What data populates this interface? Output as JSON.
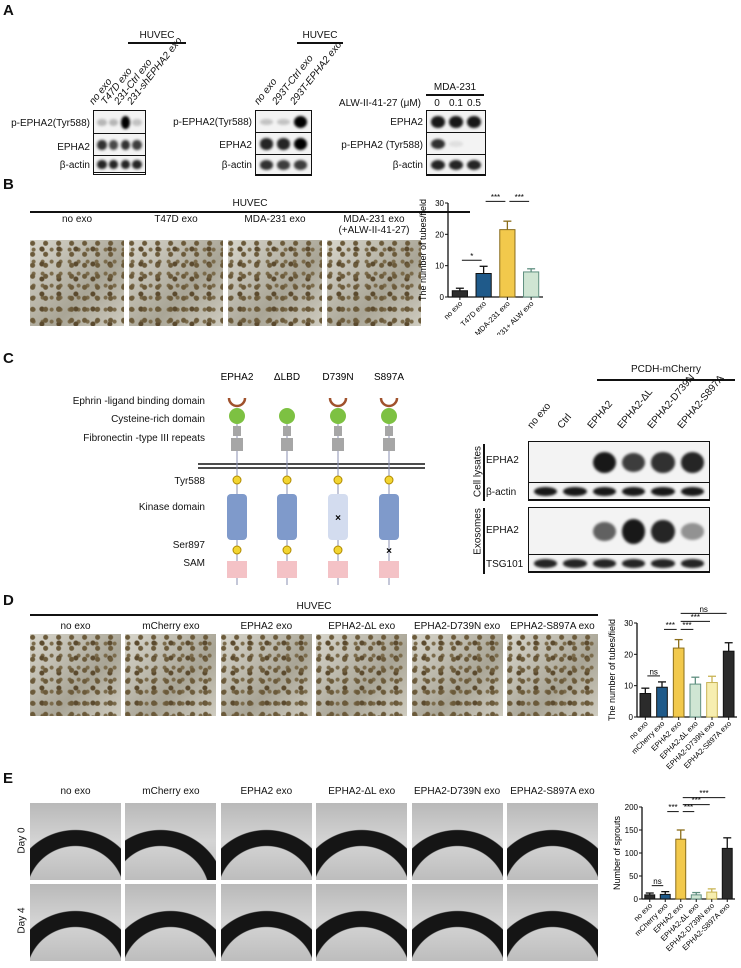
{
  "panels": {
    "a": "A",
    "b": "B",
    "c": "C",
    "d": "D",
    "e": "E"
  },
  "panel_a": {
    "blot1": {
      "header": "HUVEC",
      "lanes": [
        "no exo",
        "T47D exo",
        "231-Ctrl exo",
        "231-shEPHA2 exo"
      ],
      "rows": [
        {
          "label": "p-EPHA2(Tyr588)",
          "intensity": [
            0.25,
            0.25,
            1,
            0.2
          ]
        },
        {
          "label": "EPHA2",
          "intensity": [
            0.8,
            0.7,
            0.8,
            0.75
          ]
        },
        {
          "label": "β-actin",
          "intensity": [
            0.85,
            0.85,
            0.85,
            0.85
          ]
        }
      ]
    },
    "blot2": {
      "header": "HUVEC",
      "lanes": [
        "no exo",
        "293T-Ctrl exo",
        "293T-EPHA2 exo"
      ],
      "rows": [
        {
          "label": "p-EPHA2(Tyr588)",
          "intensity": [
            0.2,
            0.2,
            1
          ]
        },
        {
          "label": "EPHA2",
          "intensity": [
            0.85,
            0.85,
            1
          ]
        },
        {
          "label": "β-actin",
          "intensity": [
            0.8,
            0.75,
            0.75
          ]
        }
      ]
    },
    "blot3": {
      "header": "MDA-231",
      "treatment_label": "ALW-II-41-27 (μM)",
      "doses": [
        "0",
        "0.1",
        "0.5"
      ],
      "rows": [
        {
          "label": "EPHA2",
          "intensity": [
            0.9,
            0.9,
            0.9
          ]
        },
        {
          "label": "p-EPHA2 (Tyr588)",
          "intensity": [
            0.8,
            0.08,
            0
          ]
        },
        {
          "label": "β-actin",
          "intensity": [
            0.85,
            0.85,
            0.85
          ]
        }
      ]
    }
  },
  "panel_b": {
    "header": "HUVEC",
    "conditions": [
      "no exo",
      "T47D exo",
      "MDA-231 exo",
      "MDA-231 exo\n(+ALW-II-41-27)"
    ]
  },
  "panel_c": {
    "constructs": [
      "EPHA2",
      "ΔLBD",
      "D739N",
      "S897A"
    ],
    "domains": {
      "ligand": "Ephrin -ligand  binding domain",
      "cys": "Cysteine-rich domain",
      "fn": "Fibronectin  -type III  repeats",
      "tyr": "Tyr588",
      "kinase": "Kinase domain",
      "ser": "Ser897",
      "sam": "SAM"
    },
    "mutation_mark": "×",
    "colors": {
      "ligand": "#a0522d",
      "cys": "#7dc142",
      "fn": "#a6a6a6",
      "tyr": "#f2d531",
      "kinase": "#7f9acb",
      "kinase_dead": "#d3dcef",
      "sam": "#f4c2c6"
    },
    "blot": {
      "header": "PCDH-mCherry",
      "lanes": [
        "no exo",
        "Ctrl",
        "EPHA2",
        "EPHA2-ΔL",
        "EPHA2-D739N",
        "EPHA2-S897A"
      ],
      "groups": [
        "Cell lysates",
        "Exosomes"
      ],
      "rows": [
        {
          "label": "EPHA2",
          "intensity": [
            0,
            0,
            0.9,
            0.75,
            0.8,
            0.85
          ]
        },
        {
          "label": "β-actin",
          "intensity": [
            0.9,
            0.9,
            0.9,
            0.9,
            0.9,
            0.9
          ]
        },
        {
          "label": "EPHA2",
          "intensity": [
            0,
            0,
            0.6,
            0.9,
            0.85,
            0.4
          ]
        },
        {
          "label": "TSG101",
          "intensity": [
            0.85,
            0.85,
            0.85,
            0.85,
            0.85,
            0.85
          ]
        }
      ]
    }
  },
  "panel_d": {
    "header": "HUVEC",
    "conditions": [
      "no exo",
      "mCherry exo",
      "EPHA2 exo",
      "EPHA2-ΔL exo",
      "EPHA2-D739N exo",
      "EPHA2-S897A exo"
    ]
  },
  "panel_e": {
    "conditions": [
      "no exo",
      "mCherry exo",
      "EPHA2 exo",
      "EPHA2-ΔL exo",
      "EPHA2-D739N exo",
      "EPHA2-S897A exo"
    ],
    "rows": [
      "Day 0",
      "Day 4"
    ]
  },
  "chart_data": [
    {
      "type": "bar",
      "panel": "B",
      "ylabel": "The number of tubes/field",
      "ylim": [
        0,
        30
      ],
      "yticks": [
        0,
        10,
        20,
        30
      ],
      "categories": [
        "no exo",
        "T47D exo",
        "MDA-231 exo",
        "231+ ALW exo"
      ],
      "values": [
        2,
        7.5,
        21.5,
        8
      ],
      "errors": [
        0.8,
        2.3,
        2.7,
        1
      ],
      "colors": [
        "#2b2b2b",
        "#1f5a8a",
        "#f2c94c",
        "#cfe5d3"
      ],
      "significance": [
        {
          "from": 0,
          "to": 1,
          "label": "*",
          "level": 0
        },
        {
          "from": 1,
          "to": 2,
          "label": "***",
          "level": 2
        },
        {
          "from": 2,
          "to": 3,
          "label": "***",
          "level": 2
        }
      ]
    },
    {
      "type": "bar",
      "panel": "D",
      "ylabel": "The number of tubes/field",
      "ylim": [
        0,
        30
      ],
      "yticks": [
        0,
        10,
        20,
        30
      ],
      "categories": [
        "no exo",
        "mCherry exo",
        "EPHA2 exo",
        "EPHA2-ΔL exo",
        "EPHA2-D739N exo",
        "EPHA2-S897A exo"
      ],
      "values": [
        7.5,
        9.5,
        22,
        10.5,
        11,
        21
      ],
      "errors": [
        1.7,
        1.7,
        2.7,
        2.2,
        2,
        2.7
      ],
      "colors": [
        "#2b2b2b",
        "#1f5a8a",
        "#f2c94c",
        "#cfe5d3",
        "#f7eeb0",
        "#2b2b2b"
      ],
      "significance": [
        {
          "from": 0,
          "to": 1,
          "label": "ns",
          "level": 0
        },
        {
          "from": 1,
          "to": 2,
          "label": "***",
          "level": 1
        },
        {
          "from": 2,
          "to": 3,
          "label": "***",
          "level": 1
        },
        {
          "from": 2,
          "to": 4,
          "label": "***",
          "level": 2
        },
        {
          "from": 2,
          "to": 5,
          "label": "ns",
          "level": 3
        }
      ]
    },
    {
      "type": "bar",
      "panel": "E",
      "ylabel": "Number of sprouts",
      "ylim": [
        0,
        200
      ],
      "yticks": [
        0,
        50,
        100,
        150,
        200
      ],
      "categories": [
        "no exo",
        "mCherry exo",
        "EPHA2 exo",
        "EPHA2-ΔL exo",
        "EPHA2-D739N exo",
        "EPHA2-S897A exo"
      ],
      "values": [
        9,
        10,
        130,
        9,
        15,
        110
      ],
      "errors": [
        4,
        6,
        20,
        5,
        7,
        23
      ],
      "colors": [
        "#2b2b2b",
        "#1f5a8a",
        "#f2c94c",
        "#cfe5d3",
        "#f7eeb0",
        "#2b2b2b"
      ],
      "significance": [
        {
          "from": 0,
          "to": 1,
          "label": "ns",
          "level": 0
        },
        {
          "from": 1,
          "to": 2,
          "label": "***",
          "level": 1
        },
        {
          "from": 2,
          "to": 3,
          "label": "***",
          "level": 1
        },
        {
          "from": 2,
          "to": 4,
          "label": "***",
          "level": 2
        },
        {
          "from": 2,
          "to": 5,
          "label": "***",
          "level": 3
        }
      ]
    }
  ]
}
